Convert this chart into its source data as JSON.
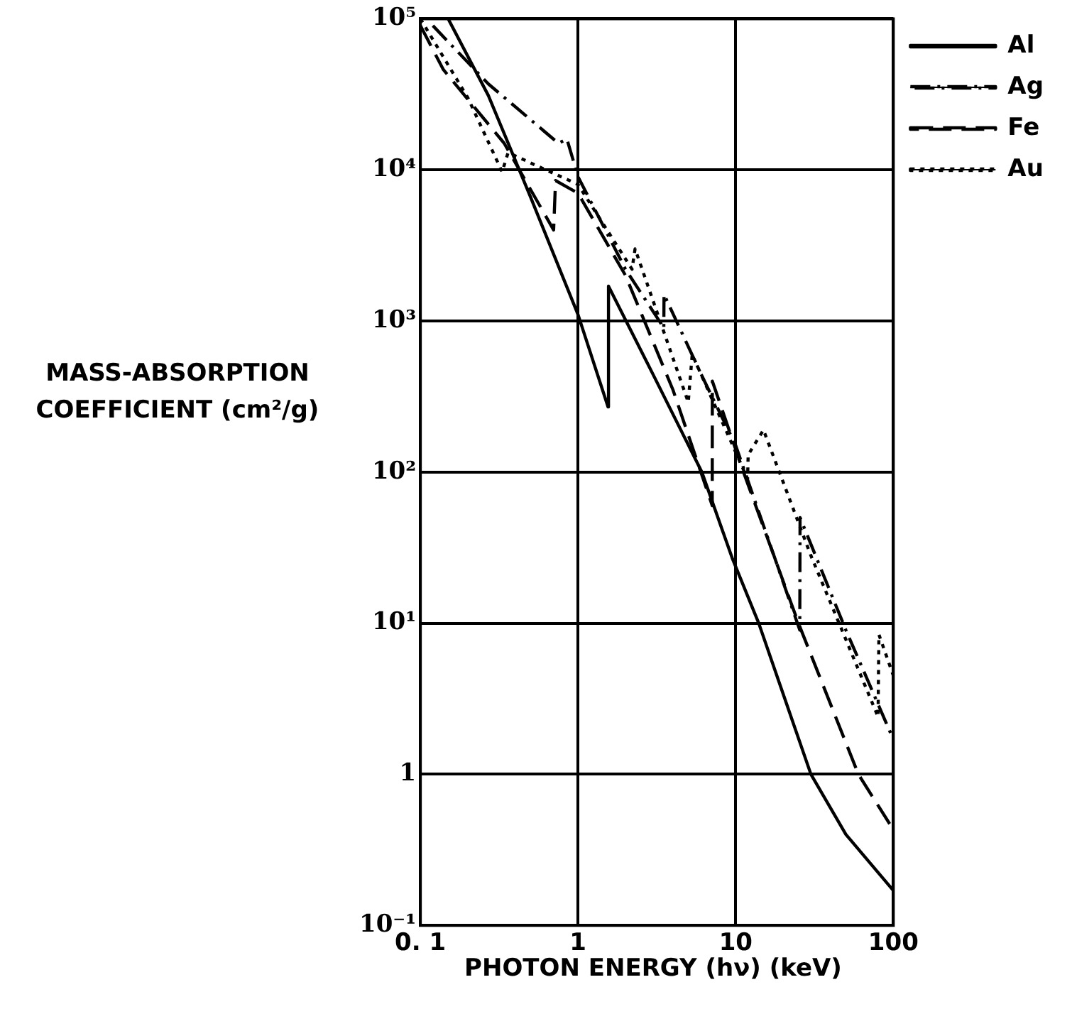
{
  "chart_data": {
    "type": "line",
    "xlabel": "PHOTON ENERGY (hν) (keV)",
    "ylabel": "MASS-ABSORPTION COEFFICIENT (cm²/g)",
    "log": "xy",
    "grid": true,
    "legend": "top right",
    "marker": "none",
    "xlim": [
      0.1,
      100
    ],
    "xticks": [
      {
        "value": 0.1,
        "label": "0. 1"
      },
      1,
      10,
      100
    ],
    "ylim": [
      0.1,
      100000
    ],
    "yticks": [
      {
        "value": 0.1,
        "label": "10⁻¹"
      },
      1,
      {
        "value": 10,
        "label": "10¹"
      },
      {
        "value": 100,
        "label": "10²"
      },
      {
        "value": 1000,
        "label": "10³"
      },
      {
        "value": 10000,
        "label": "10⁴"
      },
      {
        "value": 100000,
        "label": "10⁵"
      }
    ],
    "series": [
      {
        "name": "Al",
        "color": "#000000",
        "line_style": "solid",
        "x": [
          0.15,
          0.27,
          0.5,
          1,
          1.55,
          1.56,
          3,
          6.1,
          9.5,
          14,
          20,
          30,
          50,
          100
        ],
        "values": [
          100000,
          31000,
          6600,
          1100,
          270,
          1700,
          440,
          100,
          27,
          10,
          3.4,
          1,
          0.4,
          0.17
        ]
      },
      {
        "name": "Ag",
        "color": "#000000",
        "line_style": "dashdot",
        "x": [
          0.12,
          0.27,
          0.75,
          0.85,
          1,
          2,
          3.5,
          3.51,
          6,
          10,
          25.5,
          25.6,
          50,
          100
        ],
        "values": [
          90000,
          37000,
          15000,
          16000,
          9000,
          2200,
          900,
          1500,
          450,
          150,
          9,
          50,
          9,
          1.7
        ]
      },
      {
        "name": "Fe",
        "color": "#000000",
        "line_style": "dashed",
        "x": [
          0.1,
          0.14,
          0.34,
          0.7,
          0.72,
          1,
          2,
          4,
          7.1,
          7.11,
          11.2,
          25,
          60,
          100
        ],
        "values": [
          90000,
          46000,
          15000,
          4000,
          8500,
          7000,
          2000,
          350,
          60,
          400,
          100,
          10,
          1,
          0.43
        ]
      },
      {
        "name": "Au",
        "color": "#000000",
        "line_style": "dotted",
        "x": [
          0.1,
          0.2,
          0.33,
          0.36,
          1,
          2.2,
          2.3,
          5,
          5.3,
          11.9,
          12,
          15,
          30,
          80,
          81,
          100
        ],
        "values": [
          100000,
          30000,
          9700,
          13000,
          8000,
          2200,
          3000,
          290,
          600,
          90,
          130,
          190,
          28,
          2.4,
          8.4,
          4.5
        ]
      }
    ]
  }
}
